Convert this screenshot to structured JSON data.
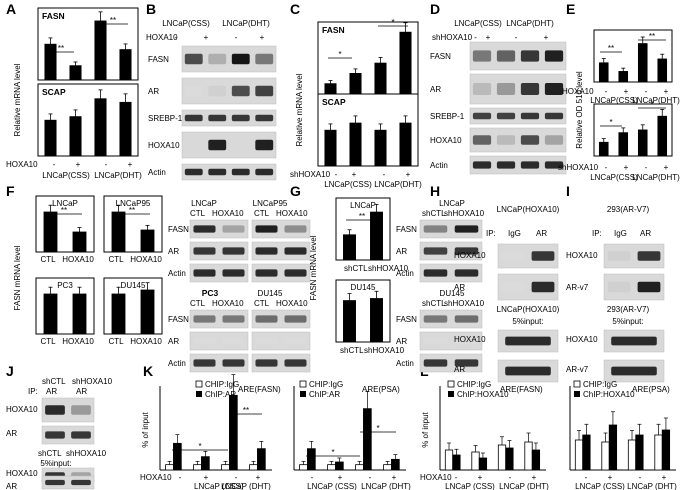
{
  "panels": [
    "A",
    "B",
    "C",
    "D",
    "E",
    "F",
    "G",
    "H",
    "I",
    "J",
    "K",
    "L"
  ],
  "labels": {
    "fasn": "FASN",
    "scap": "SCAP",
    "ar": "AR",
    "srebp1": "SREBP-1",
    "hoxa10": "HOXA10",
    "actin": "Actin",
    "arv7": "AR-v7",
    "ip": "IP:",
    "igg": "IgG",
    "input5": "5%input:",
    "plus": "+",
    "minus": "-",
    "star1": "*",
    "star2": "**",
    "css": "LNCaP(CSS)",
    "dht": "LNCaP(DHT)",
    "cssP": "LNCaP (CSS)",
    "dhtP": "LNCaP (DHT)",
    "lncap": "LNCaP",
    "lncap95": "LNCaP95",
    "pc3": "PC3",
    "du145": "DU145",
    "ctl": "CTL",
    "shctl": "shCTL",
    "shhox": "shHOXA10",
    "shhoxdash": "shHOXA10 -",
    "lncapHox": "LNCaP(HOXA10)",
    "v7": "293(AR-V7)",
    "yA": "Relative mRNA level",
    "yE": "Relative OD 510 level",
    "yF": "FASN mRNA level",
    "yK": "% of input",
    "chipIgg": "CHIP:IgG",
    "chipAr": "ChIP:AR",
    "chipHox": "ChIP:HOXA10",
    "areFasn": "ARE(FASN)",
    "arePsa": "ARE(PSA)",
    "hoxLbl": "HOXA10"
  },
  "chart_data": [
    {
      "panel": "A",
      "type": "bar",
      "title": "FASN",
      "categories": [
        "LNCaP(CSS) -",
        "LNCaP(CSS) +",
        "LNCaP(DHT) -",
        "LNCaP(DHT) +"
      ],
      "values": [
        1.0,
        0.4,
        1.65,
        0.85
      ]
    },
    {
      "panel": "A",
      "type": "bar",
      "title": "SCAP",
      "categories": [
        "LNCaP(CSS) -",
        "LNCaP(CSS) +",
        "LNCaP(DHT) -",
        "LNCaP(DHT) +"
      ],
      "values": [
        1.0,
        1.1,
        1.6,
        1.5
      ]
    },
    {
      "panel": "C",
      "type": "bar",
      "title": "FASN",
      "categories": [
        "LNCaP(CSS) -",
        "LNCaP(CSS) +",
        "LNCaP(DHT) -",
        "LNCaP(DHT) +"
      ],
      "values": [
        1.0,
        2.0,
        3.0,
        6.0
      ]
    },
    {
      "panel": "C",
      "type": "bar",
      "title": "SCAP",
      "categories": [
        "LNCaP(CSS) -",
        "LNCaP(CSS) +",
        "LNCaP(DHT) -",
        "LNCaP(DHT) +"
      ],
      "values": [
        1.0,
        1.2,
        1.0,
        1.2
      ]
    },
    {
      "panel": "E",
      "type": "bar",
      "categories": [
        "LNCaP(CSS) -",
        "LNCaP(CSS) +",
        "LNCaP(DHT) -",
        "LNCaP(DHT) +"
      ],
      "values": [
        1.0,
        0.55,
        2.0,
        1.2
      ]
    },
    {
      "panel": "E",
      "type": "bar",
      "categories": [
        "LNCaP(CSS) -",
        "LNCaP(CSS) +",
        "LNCaP(DHT) -",
        "LNCaP(DHT) +"
      ],
      "values": [
        1.0,
        1.7,
        1.9,
        2.9
      ]
    },
    {
      "panel": "F",
      "type": "bar",
      "title": "LNCaP",
      "categories": [
        "CTL",
        "HOXA10"
      ],
      "values": [
        1.0,
        0.5
      ]
    },
    {
      "panel": "F",
      "type": "bar",
      "title": "LNCaP95",
      "categories": [
        "CTL",
        "HOXA10"
      ],
      "values": [
        1.0,
        0.55
      ]
    },
    {
      "panel": "F",
      "type": "bar",
      "title": "PC3",
      "categories": [
        "CTL",
        "HOXA10"
      ],
      "values": [
        1.0,
        1.0
      ]
    },
    {
      "panel": "F",
      "type": "bar",
      "title": "DU145",
      "categories": [
        "CTL",
        "HOXA10"
      ],
      "values": [
        1.0,
        1.1
      ]
    },
    {
      "panel": "G",
      "type": "bar",
      "title": "LNCaP",
      "categories": [
        "shCTL",
        "shHOXA10"
      ],
      "values": [
        1.0,
        1.9
      ]
    },
    {
      "panel": "G",
      "type": "bar",
      "title": "DU145",
      "categories": [
        "shCTL",
        "shHOXA10"
      ],
      "values": [
        1.0,
        1.05
      ]
    },
    {
      "panel": "K",
      "type": "bar",
      "title": "ARE(FASN)",
      "categories": [
        "LNCaP(CSS) -",
        "LNCaP(CSS) +",
        "LNCaP(DHT) -",
        "LNCaP(DHT) +"
      ],
      "series": [
        {
          "name": "CHIP:IgG",
          "values": [
            0.02,
            0.02,
            0.02,
            0.02
          ]
        },
        {
          "name": "ChIP:AR",
          "values": [
            0.1,
            0.05,
            0.28,
            0.08
          ]
        }
      ],
      "ylim": [
        0,
        0.3
      ]
    },
    {
      "panel": "K",
      "type": "bar",
      "title": "ARE(PSA)",
      "categories": [
        "LNCaP(CSS) -",
        "LNCaP(CSS) +",
        "LNCaP(DHT) -",
        "LNCaP(DHT) +"
      ],
      "series": [
        {
          "name": "CHIP:IgG",
          "values": [
            0.02,
            0.02,
            0.02,
            0.02
          ]
        },
        {
          "name": "ChIP:AR",
          "values": [
            0.08,
            0.03,
            0.23,
            0.04
          ]
        }
      ],
      "ylim": [
        0,
        0.3
      ]
    },
    {
      "panel": "L",
      "type": "bar",
      "title": "ARE(FASN)",
      "categories": [
        "LNCaP(CSS) -",
        "LNCaP(CSS) +",
        "LNCaP(DHT) -",
        "LNCaP(DHT) +"
      ],
      "series": [
        {
          "name": "CHIP:IgG",
          "values": [
            0.02,
            0.018,
            0.025,
            0.028
          ]
        },
        {
          "name": "ChIP:HOXA10",
          "values": [
            0.015,
            0.012,
            0.022,
            0.02
          ]
        }
      ],
      "ylim": [
        0,
        0.08
      ]
    },
    {
      "panel": "L",
      "type": "bar",
      "title": "ARE(PSA)",
      "categories": [
        "LNCaP(CSS) -",
        "LNCaP(CSS) +",
        "LNCaP(DHT) -",
        "LNCaP(DHT) +"
      ],
      "series": [
        {
          "name": "CHIP:IgG",
          "values": [
            0.03,
            0.028,
            0.03,
            0.035
          ]
        },
        {
          "name": "ChIP:HOXA10",
          "values": [
            0.035,
            0.045,
            0.035,
            0.04
          ]
        }
      ],
      "ylim": [
        0,
        0.08
      ]
    }
  ]
}
